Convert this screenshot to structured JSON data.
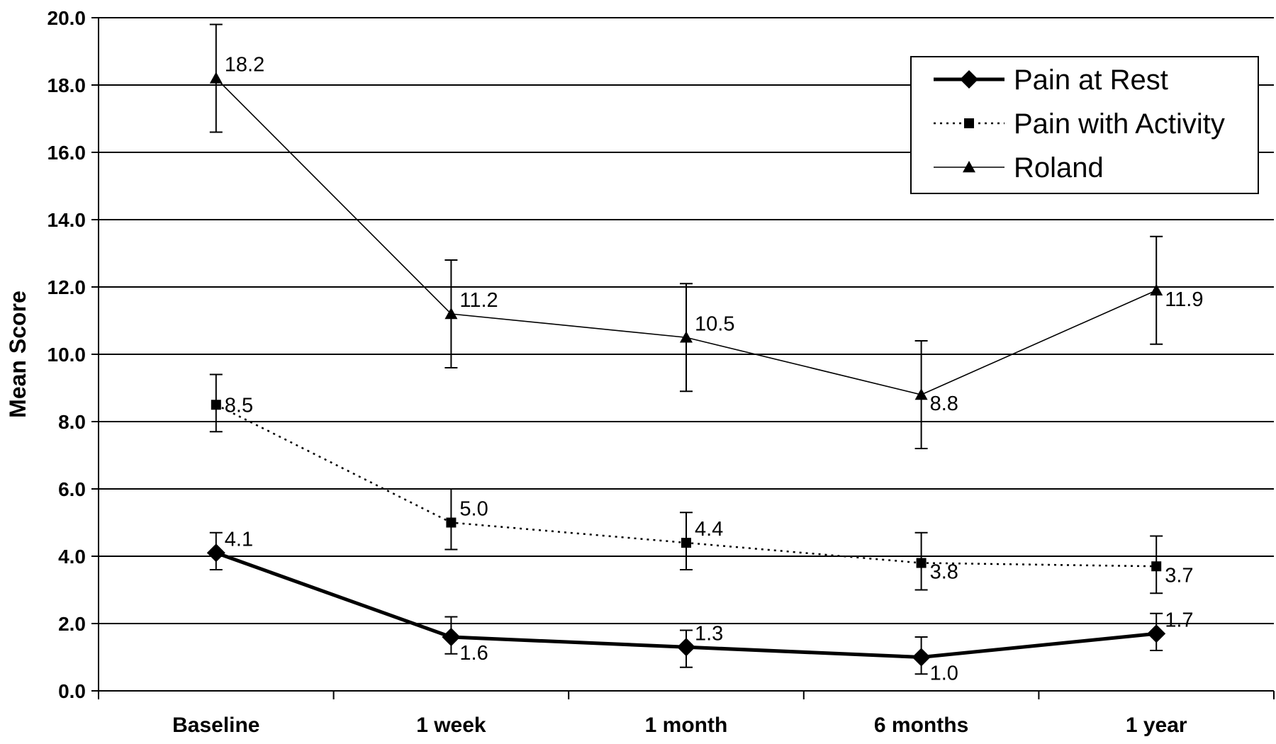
{
  "chart_data": {
    "type": "line",
    "title": "",
    "xlabel": "",
    "ylabel": "Mean Score",
    "ylim": [
      0,
      20
    ],
    "ytick_step": 2,
    "ytick_format": "one decimal",
    "grid": "horizontal",
    "legend_position": "top-right",
    "categories": [
      "Baseline",
      "1 week",
      "1 month",
      "6 months",
      "1 year"
    ],
    "series": [
      {
        "name": "Pain at Rest",
        "values": [
          4.1,
          1.6,
          1.3,
          1.0,
          1.7
        ],
        "error_low": [
          3.6,
          1.1,
          0.7,
          0.5,
          1.2
        ],
        "error_high": [
          4.7,
          2.2,
          1.8,
          1.6,
          2.3
        ],
        "labels": [
          "4.1",
          "1.6",
          "1.3",
          "1.0",
          "1.7"
        ],
        "marker": "diamond",
        "line_style": "thick solid",
        "color": "#000000"
      },
      {
        "name": "Pain with Activity",
        "values": [
          8.5,
          5.0,
          4.4,
          3.8,
          3.7
        ],
        "error_low": [
          7.7,
          4.2,
          3.6,
          3.0,
          2.9
        ],
        "error_high": [
          9.4,
          6.0,
          5.3,
          4.7,
          4.6
        ],
        "labels": [
          "8.5",
          "5.0",
          "4.4",
          "3.8",
          "3.7"
        ],
        "marker": "square",
        "line_style": "dotted",
        "color": "#000000"
      },
      {
        "name": "Roland",
        "values": [
          18.2,
          11.2,
          10.5,
          8.8,
          11.9
        ],
        "error_low": [
          16.6,
          9.6,
          8.9,
          7.2,
          10.3
        ],
        "error_high": [
          19.8,
          12.8,
          12.1,
          10.4,
          13.5
        ],
        "labels": [
          "18.2",
          "11.2",
          "10.5",
          "8.8",
          "11.9"
        ],
        "marker": "triangle",
        "line_style": "thin solid",
        "color": "#000000"
      }
    ]
  }
}
